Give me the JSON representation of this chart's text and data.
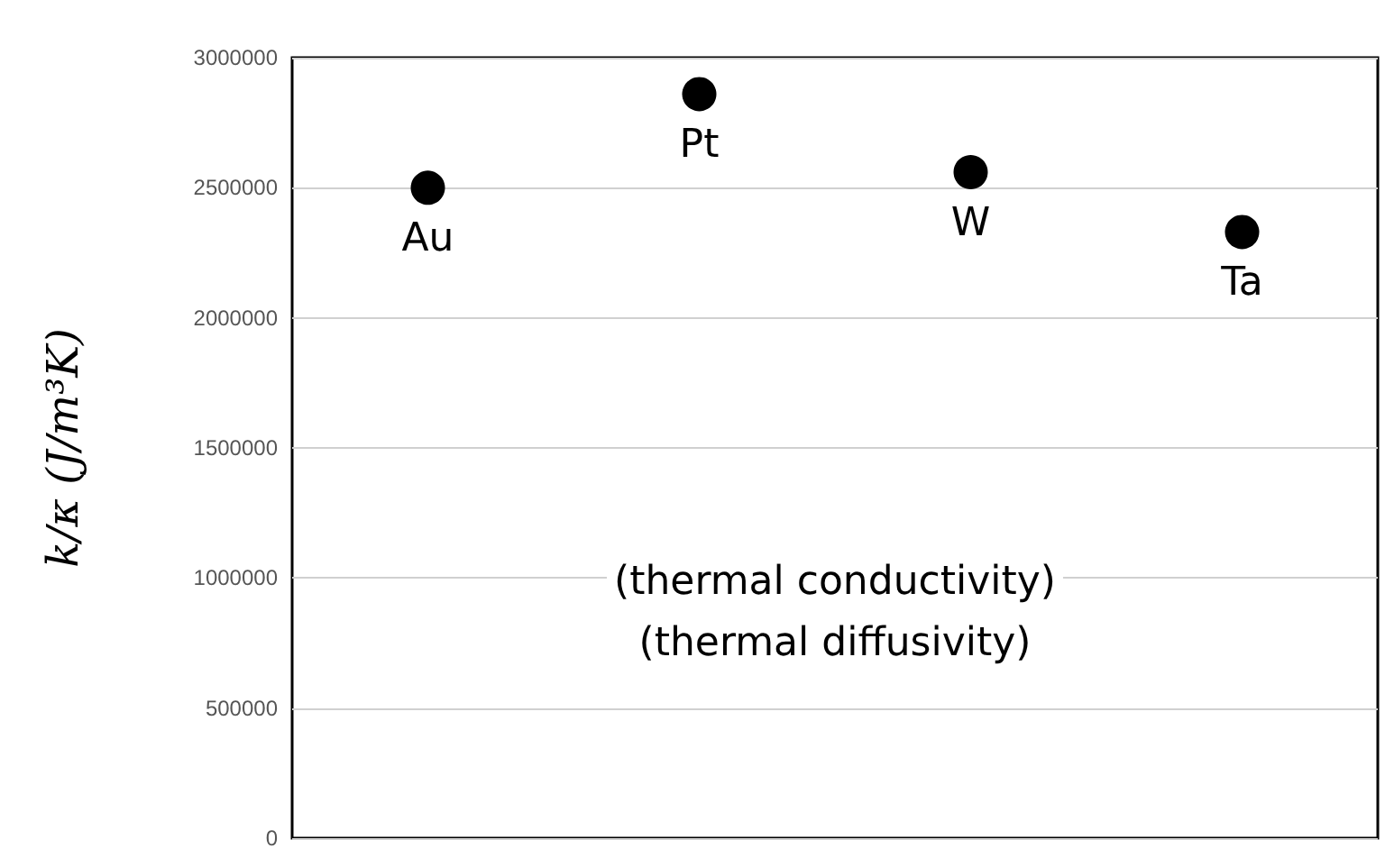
{
  "chart_data": {
    "type": "scatter",
    "ylabel": "k/κ (J/m³K)",
    "categories": [
      null,
      null,
      null,
      null
    ],
    "values": [
      2500000,
      2860000,
      2560000,
      2330000
    ],
    "value_labels": [
      "Au",
      "Pt",
      "W",
      "Ta"
    ],
    "color": "#000000",
    "marker": "circle",
    "ylim": [
      0,
      3000000
    ],
    "yticks": [
      0,
      500000,
      1000000,
      1500000,
      2000000,
      2500000,
      3000000
    ],
    "grid": "y",
    "tick_labels": "y",
    "annotations": [
      "(thermal conductivity)",
      "(thermal diffusivity)"
    ]
  }
}
